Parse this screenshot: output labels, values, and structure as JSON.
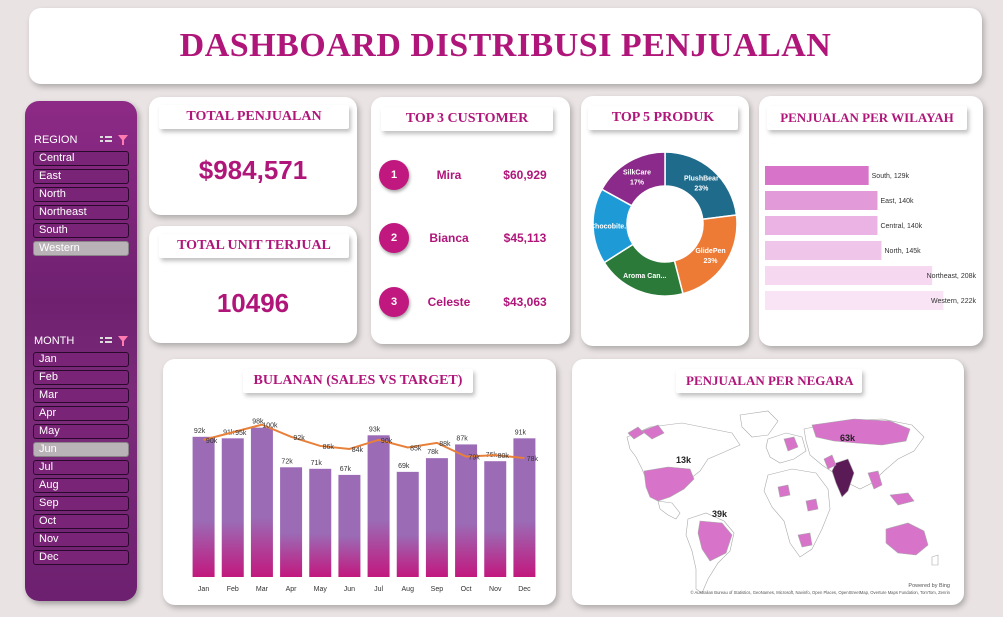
{
  "title": "DASHBOARD DISTRIBUSI PENJUALAN",
  "colors": {
    "accent": "#b0167a",
    "panel": "#7b2b7a",
    "bar": "#9b6bb5",
    "line": "#e8803a"
  },
  "region_slicer": {
    "header": "REGION",
    "items": [
      {
        "label": "Central",
        "selected": false
      },
      {
        "label": "East",
        "selected": false
      },
      {
        "label": "North",
        "selected": false
      },
      {
        "label": "Northeast",
        "selected": false
      },
      {
        "label": "South",
        "selected": false
      },
      {
        "label": "Western",
        "selected": true
      }
    ]
  },
  "month_slicer": {
    "header": "MONTH",
    "items": [
      {
        "label": "Jan",
        "selected": false
      },
      {
        "label": "Feb",
        "selected": false
      },
      {
        "label": "Mar",
        "selected": false
      },
      {
        "label": "Apr",
        "selected": false
      },
      {
        "label": "May",
        "selected": false
      },
      {
        "label": "Jun",
        "selected": true
      },
      {
        "label": "Jul",
        "selected": false
      },
      {
        "label": "Aug",
        "selected": false
      },
      {
        "label": "Sep",
        "selected": false
      },
      {
        "label": "Oct",
        "selected": false
      },
      {
        "label": "Nov",
        "selected": false
      },
      {
        "label": "Dec",
        "selected": false
      }
    ]
  },
  "total_sales": {
    "label": "TOTAL PENJUALAN",
    "value": "$984,571"
  },
  "total_units": {
    "label": "TOTAL UNIT TERJUAL",
    "value": "10496"
  },
  "top_customers": {
    "label": "TOP 3 CUSTOMER",
    "items": [
      {
        "rank": "1",
        "name": "Mira",
        "amount": "$60,929"
      },
      {
        "rank": "2",
        "name": "Bianca",
        "amount": "$45,113"
      },
      {
        "rank": "3",
        "name": "Celeste",
        "amount": "$43,063"
      }
    ]
  },
  "map_card": {
    "label": "PENJUALAN PER NEGARA",
    "labels": [
      "13k",
      "39k",
      "63k"
    ],
    "powered_by": "Powered by Bing",
    "credits": "© Australian Bureau of Statistics, GeoNames, Microsoft, Navinfo, Open Places, OpenStreetMap, Overture Maps Fundation, TomTom, Zenrin"
  },
  "chart_data": [
    {
      "type": "pie",
      "title": "TOP 5 PRODUK",
      "donut": true,
      "slices": [
        {
          "name": "PlushBear",
          "label": "23%",
          "value": 23,
          "color": "#1f6b8c"
        },
        {
          "name": "GlidePen",
          "label": "23%",
          "value": 23,
          "color": "#ed7a35"
        },
        {
          "name": "Aroma Can...",
          "label": "",
          "value": 20,
          "color": "#2b7a3a"
        },
        {
          "name": "Chocobite...",
          "label": "",
          "value": 17,
          "color": "#1e9bd7"
        },
        {
          "name": "SilkCare",
          "label": "17%",
          "value": 17,
          "color": "#8b2a8a"
        }
      ]
    },
    {
      "type": "bar",
      "orientation": "horizontal",
      "title": "PENJUALAN PER WILAYAH",
      "categories": [
        "South",
        "East",
        "Central",
        "North",
        "Northeast",
        "Western"
      ],
      "values": [
        129,
        140,
        140,
        145,
        208,
        222
      ],
      "data_labels": [
        "South, 129k",
        "East, 140k",
        "Central, 140k",
        "North, 145k",
        "Northeast, 208k",
        "Western, 222k"
      ],
      "colors": [
        "#d773c9",
        "#e39ad9",
        "#ebb3e3",
        "#f0c5ea",
        "#f6d8f1",
        "#f9e4f5"
      ],
      "xlim": [
        0,
        230
      ]
    },
    {
      "type": "bar",
      "title": "BULANAN (SALES VS TARGET)",
      "categories": [
        "Jan",
        "Feb",
        "Mar",
        "Apr",
        "May",
        "Jun",
        "Jul",
        "Aug",
        "Sep",
        "Oct",
        "Nov",
        "Dec"
      ],
      "series": [
        {
          "type": "bar",
          "values": [
            92,
            91,
            98,
            72,
            71,
            67,
            93,
            69,
            78,
            87,
            76,
            91
          ],
          "labels": [
            "92k",
            "91k",
            "98k",
            "72k",
            "71k",
            "67k",
            "93k",
            "69k",
            "78k",
            "87k",
            "76k",
            "91k"
          ]
        },
        {
          "type": "line",
          "values": [
            90,
            95,
            100,
            92,
            86,
            84,
            90,
            85,
            88,
            79,
            80,
            78
          ],
          "labels": [
            "90k",
            "95k",
            "100k",
            "92k",
            "86k",
            "84k",
            "90k",
            "85k",
            "88k",
            "79k",
            "80k",
            "78k"
          ]
        }
      ],
      "ylim": [
        0,
        105
      ]
    }
  ]
}
